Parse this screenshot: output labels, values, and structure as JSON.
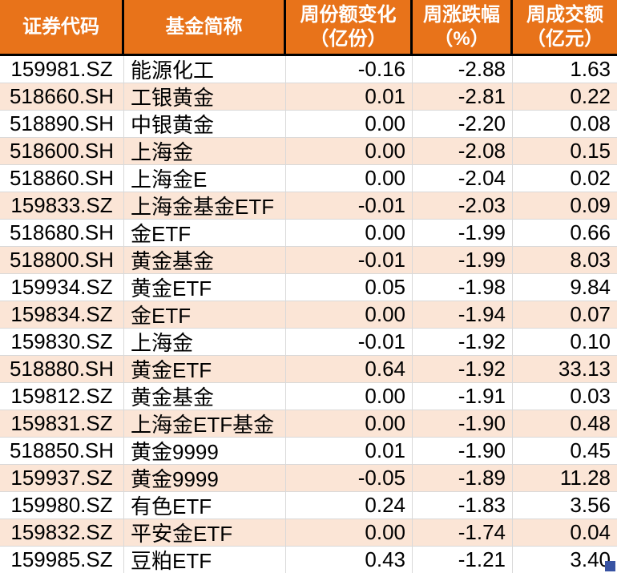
{
  "colors": {
    "header_bg": "#E8731A",
    "header_text": "#FFFFFF",
    "header_divider": "#000000",
    "stripe_bg": "#FBE5D6",
    "grid_line": "#D9D9D9",
    "text": "#000000",
    "handle_blue": "#3853A3"
  },
  "chart_data": {
    "type": "table",
    "columns": [
      {
        "label": "证券代码",
        "unit": ""
      },
      {
        "label": "基金简称",
        "unit": ""
      },
      {
        "label": "周份额变化",
        "unit": "（亿份）"
      },
      {
        "label": "周涨跌幅",
        "unit": "（%）"
      },
      {
        "label": "周成交额",
        "unit": "（亿元）"
      }
    ],
    "rows": [
      {
        "code": "159981.SZ",
        "name": "能源化工",
        "share_change": "-0.16",
        "pct_change": "-2.88",
        "turnover": "1.63"
      },
      {
        "code": "518660.SH",
        "name": "工银黄金",
        "share_change": "0.01",
        "pct_change": "-2.81",
        "turnover": "0.22"
      },
      {
        "code": "518890.SH",
        "name": "中银黄金",
        "share_change": "0.00",
        "pct_change": "-2.20",
        "turnover": "0.08"
      },
      {
        "code": "518600.SH",
        "name": "上海金",
        "share_change": "0.00",
        "pct_change": "-2.08",
        "turnover": "0.15"
      },
      {
        "code": "518860.SH",
        "name": "上海金E",
        "share_change": "0.00",
        "pct_change": "-2.04",
        "turnover": "0.02"
      },
      {
        "code": "159833.SZ",
        "name": "上海金基金ETF",
        "share_change": "-0.01",
        "pct_change": "-2.03",
        "turnover": "0.09"
      },
      {
        "code": "518680.SH",
        "name": "金ETF",
        "share_change": "0.00",
        "pct_change": "-1.99",
        "turnover": "0.66"
      },
      {
        "code": "518800.SH",
        "name": "黄金基金",
        "share_change": "-0.01",
        "pct_change": "-1.99",
        "turnover": "8.03"
      },
      {
        "code": "159934.SZ",
        "name": "黄金ETF",
        "share_change": "0.05",
        "pct_change": "-1.98",
        "turnover": "9.84"
      },
      {
        "code": "159834.SZ",
        "name": "金ETF",
        "share_change": "0.00",
        "pct_change": "-1.94",
        "turnover": "0.07"
      },
      {
        "code": "159830.SZ",
        "name": "上海金",
        "share_change": "-0.01",
        "pct_change": "-1.92",
        "turnover": "0.10"
      },
      {
        "code": "518880.SH",
        "name": "黄金ETF",
        "share_change": "0.64",
        "pct_change": "-1.92",
        "turnover": "33.13"
      },
      {
        "code": "159812.SZ",
        "name": "黄金基金",
        "share_change": "0.00",
        "pct_change": "-1.91",
        "turnover": "0.03"
      },
      {
        "code": "159831.SZ",
        "name": "上海金ETF基金",
        "share_change": "0.00",
        "pct_change": "-1.90",
        "turnover": "0.48"
      },
      {
        "code": "518850.SH",
        "name": "黄金9999",
        "share_change": "0.01",
        "pct_change": "-1.90",
        "turnover": "0.45"
      },
      {
        "code": "159937.SZ",
        "name": "黄金9999",
        "share_change": "-0.05",
        "pct_change": "-1.89",
        "turnover": "11.28"
      },
      {
        "code": "159980.SZ",
        "name": "有色ETF",
        "share_change": "0.24",
        "pct_change": "-1.83",
        "turnover": "3.56"
      },
      {
        "code": "159832.SZ",
        "name": "平安金ETF",
        "share_change": "0.00",
        "pct_change": "-1.74",
        "turnover": "0.04"
      },
      {
        "code": "159985.SZ",
        "name": "豆粕ETF",
        "share_change": "0.43",
        "pct_change": "-1.21",
        "turnover": "3.40"
      }
    ]
  }
}
